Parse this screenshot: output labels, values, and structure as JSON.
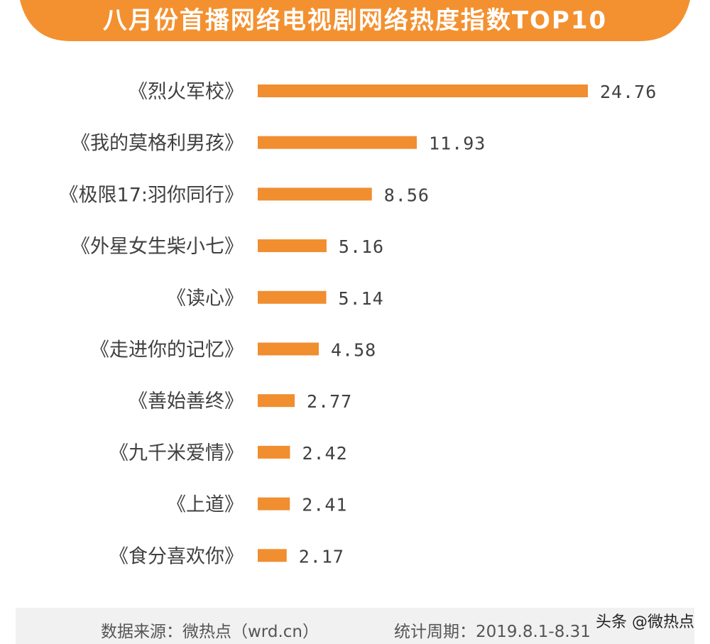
{
  "title": "八月份首播网络电视剧网络热度指数TOP10",
  "colors": {
    "accent": "#f39130",
    "bar": "#f08e30",
    "text": "#404040",
    "footer_bg": "#f1f1f1"
  },
  "chart_data": {
    "type": "bar",
    "orientation": "horizontal",
    "categories": [
      "《烈火军校》",
      "《我的莫格利男孩》",
      "《极限17:羽你同行》",
      "《外星女生柴小七》",
      "《读心》",
      "《走进你的记忆》",
      "《善始善终》",
      "《九千米爱情》",
      "《上道》",
      "《食分喜欢你》"
    ],
    "values": [
      24.76,
      11.93,
      8.56,
      5.16,
      5.14,
      4.58,
      2.77,
      2.42,
      2.41,
      2.17
    ],
    "value_labels": [
      "24.76",
      "11.93",
      "8.56",
      "5.16",
      "5.14",
      "4.58",
      "2.77",
      "2.42",
      "2.41",
      "2.17"
    ],
    "xlim": [
      0,
      24.76
    ],
    "grid": false,
    "axes_visible": false
  },
  "footer": {
    "source": "数据来源：微热点（wrd.cn）",
    "period": "统计周期：2019.8.1-8.31"
  },
  "watermark": "头条 @微热点"
}
